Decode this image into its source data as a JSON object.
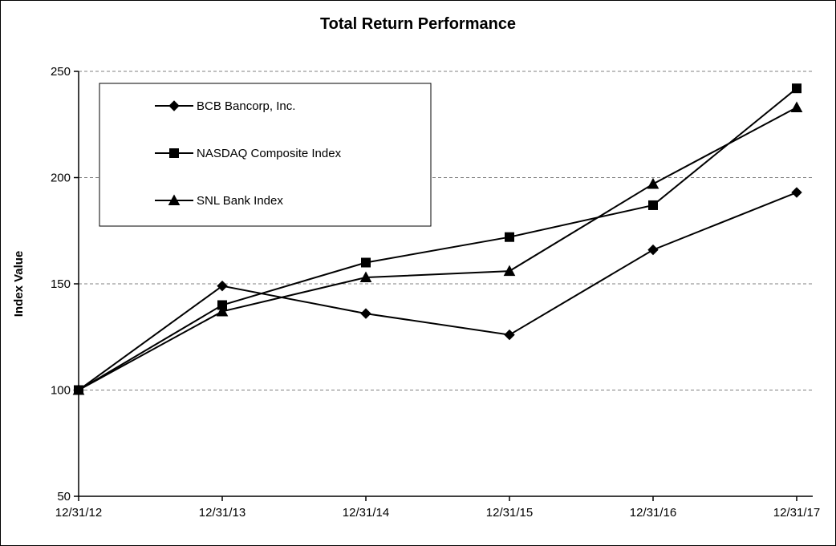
{
  "chart_data": {
    "type": "line",
    "title": "Total Return Performance",
    "xlabel": "",
    "ylabel": "Index Value",
    "categories": [
      "12/31/12",
      "12/31/13",
      "12/31/14",
      "12/31/15",
      "12/31/16",
      "12/31/17"
    ],
    "series": [
      {
        "name": "BCB Bancorp, Inc.",
        "marker": "diamond",
        "values": [
          100,
          149,
          136,
          126,
          166,
          193
        ]
      },
      {
        "name": "NASDAQ Composite Index",
        "marker": "square",
        "values": [
          100,
          140,
          160,
          172,
          187,
          242
        ]
      },
      {
        "name": "SNL Bank Index",
        "marker": "triangle",
        "values": [
          100,
          137,
          153,
          156,
          197,
          233
        ]
      }
    ],
    "ylim": [
      50,
      250
    ],
    "yticks": [
      50,
      100,
      150,
      200,
      250
    ],
    "grid": "horizontal-dashed",
    "legend_position": "top-left",
    "line_color": "#000000",
    "grid_color": "#808080",
    "background_color": "#ffffff"
  }
}
